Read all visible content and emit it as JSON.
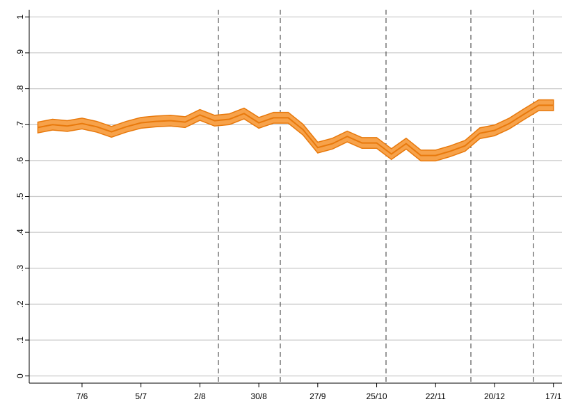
{
  "chart_data": {
    "type": "line",
    "categories": [
      null,
      null,
      null,
      "7/6",
      null,
      null,
      null,
      "5/7",
      null,
      null,
      null,
      "2/8",
      null,
      null,
      null,
      "30/8",
      null,
      null,
      null,
      "27/9",
      null,
      null,
      null,
      "25/10",
      null,
      null,
      null,
      "22/11",
      null,
      null,
      null,
      "20/12",
      null,
      null,
      null,
      "17/1"
    ],
    "values": [
      0.692,
      0.7,
      0.696,
      0.703,
      0.694,
      0.68,
      0.694,
      0.705,
      0.709,
      0.711,
      0.707,
      0.727,
      0.711,
      0.715,
      0.731,
      0.705,
      0.719,
      0.719,
      0.686,
      0.636,
      0.647,
      0.667,
      0.649,
      0.649,
      0.618,
      0.647,
      0.614,
      0.614,
      0.626,
      0.641,
      0.676,
      0.684,
      0.703,
      0.729,
      0.754,
      0.754
    ],
    "lower": [
      0.677,
      0.685,
      0.681,
      0.688,
      0.679,
      0.665,
      0.679,
      0.69,
      0.694,
      0.696,
      0.692,
      0.712,
      0.696,
      0.7,
      0.716,
      0.69,
      0.704,
      0.704,
      0.671,
      0.621,
      0.632,
      0.652,
      0.634,
      0.634,
      0.603,
      0.632,
      0.599,
      0.599,
      0.611,
      0.626,
      0.661,
      0.669,
      0.688,
      0.714,
      0.739,
      0.739
    ],
    "upper": [
      0.707,
      0.715,
      0.711,
      0.718,
      0.709,
      0.695,
      0.709,
      0.72,
      0.724,
      0.726,
      0.722,
      0.742,
      0.726,
      0.73,
      0.746,
      0.72,
      0.734,
      0.734,
      0.701,
      0.651,
      0.662,
      0.682,
      0.664,
      0.664,
      0.633,
      0.662,
      0.629,
      0.629,
      0.641,
      0.656,
      0.691,
      0.699,
      0.718,
      0.744,
      0.769,
      0.769
    ],
    "color": "#e8790c",
    "band_color": "#f7a24a",
    "ylim": [
      -0.02,
      1.02
    ],
    "yticks": [
      0,
      {
        "value": 0.1,
        "label": ".1"
      },
      {
        "value": 0.2,
        "label": ".2"
      },
      {
        "value": 0.3,
        "label": ".3"
      },
      {
        "value": 0.4,
        "label": ".4"
      },
      {
        "value": 0.5,
        "label": ".5"
      },
      {
        "value": 0.6,
        "label": ".6"
      },
      {
        "value": 0.7,
        "label": ".7"
      },
      {
        "value": 0.8,
        "label": ".8"
      },
      {
        "value": 0.9,
        "label": ".9"
      },
      1
    ],
    "grid": true
  }
}
